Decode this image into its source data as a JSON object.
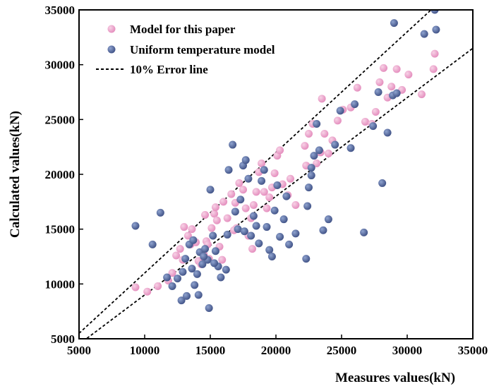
{
  "chart_data": {
    "type": "scatter",
    "title": "",
    "xlabel": "Measures values(kN)",
    "ylabel": "Calculated values(kN)",
    "xlim": [
      5000,
      35000
    ],
    "ylim": [
      5000,
      35000
    ],
    "x_ticks": [
      "5000",
      "10000",
      "15000",
      "20000",
      "25000",
      "30000",
      "35000"
    ],
    "y_ticks": [
      "5000",
      "10000",
      "15000",
      "20000",
      "25000",
      "30000",
      "35000"
    ],
    "grid": false,
    "legend_position": "top-left",
    "series": [
      {
        "name": "Model for this paper",
        "color": "#e8a0c8",
        "points": [
          [
            9300,
            9700
          ],
          [
            10200,
            9300
          ],
          [
            11000,
            9800
          ],
          [
            11800,
            10300
          ],
          [
            12100,
            11000
          ],
          [
            12400,
            12600
          ],
          [
            12700,
            13200
          ],
          [
            13000,
            15200
          ],
          [
            13300,
            14400
          ],
          [
            13600,
            15000
          ],
          [
            13900,
            13800
          ],
          [
            14100,
            12100
          ],
          [
            14300,
            11800
          ],
          [
            14500,
            12700
          ],
          [
            14700,
            13900
          ],
          [
            14900,
            12300
          ],
          [
            15100,
            15100
          ],
          [
            15300,
            16400
          ],
          [
            15500,
            15800
          ],
          [
            15700,
            13400
          ],
          [
            15900,
            12200
          ],
          [
            14800,
            13600
          ],
          [
            13500,
            13600
          ],
          [
            12900,
            12200
          ],
          [
            14600,
            16300
          ],
          [
            15400,
            17000
          ],
          [
            16000,
            17500
          ],
          [
            16300,
            16000
          ],
          [
            16600,
            18200
          ],
          [
            16900,
            17400
          ],
          [
            17200,
            19200
          ],
          [
            17500,
            18600
          ],
          [
            17700,
            16900
          ],
          [
            17900,
            14400
          ],
          [
            18100,
            16000
          ],
          [
            18300,
            17200
          ],
          [
            18500,
            18400
          ],
          [
            18700,
            20200
          ],
          [
            18900,
            21000
          ],
          [
            19100,
            18400
          ],
          [
            19300,
            16900
          ],
          [
            19500,
            17900
          ],
          [
            19700,
            18800
          ],
          [
            19900,
            20100
          ],
          [
            20100,
            21700
          ],
          [
            20300,
            22200
          ],
          [
            20500,
            19100
          ],
          [
            17000,
            15100
          ],
          [
            18200,
            13200
          ],
          [
            16800,
            14900
          ],
          [
            20900,
            18100
          ],
          [
            21500,
            17200
          ],
          [
            22200,
            22600
          ],
          [
            22500,
            23700
          ],
          [
            22800,
            24600
          ],
          [
            23100,
            21000
          ],
          [
            23400,
            22000
          ],
          [
            23700,
            23700
          ],
          [
            24000,
            21900
          ],
          [
            24300,
            23100
          ],
          [
            24700,
            24900
          ],
          [
            25100,
            25900
          ],
          [
            25700,
            26100
          ],
          [
            26200,
            27900
          ],
          [
            26800,
            24800
          ],
          [
            27300,
            24600
          ],
          [
            27600,
            25700
          ],
          [
            27900,
            28400
          ],
          [
            28200,
            29700
          ],
          [
            28500,
            27000
          ],
          [
            28800,
            28000
          ],
          [
            29200,
            29600
          ],
          [
            29600,
            27700
          ],
          [
            30100,
            29100
          ],
          [
            31100,
            27300
          ],
          [
            32000,
            29600
          ],
          [
            32100,
            31000
          ],
          [
            23500,
            26900
          ],
          [
            22300,
            20800
          ],
          [
            21100,
            19600
          ]
        ]
      },
      {
        "name": "Uniform temperature model",
        "color": "#5a6fa3",
        "points": [
          [
            9300,
            15300
          ],
          [
            10600,
            13600
          ],
          [
            11200,
            16500
          ],
          [
            11700,
            10600
          ],
          [
            12100,
            9800
          ],
          [
            12500,
            10500
          ],
          [
            12800,
            8500
          ],
          [
            13100,
            12300
          ],
          [
            13400,
            13600
          ],
          [
            13600,
            11400
          ],
          [
            13800,
            9900
          ],
          [
            14000,
            10900
          ],
          [
            14200,
            12900
          ],
          [
            14400,
            11800
          ],
          [
            14600,
            13200
          ],
          [
            14800,
            12200
          ],
          [
            15000,
            18600
          ],
          [
            15200,
            14400
          ],
          [
            15400,
            13000
          ],
          [
            15600,
            11600
          ],
          [
            15800,
            10600
          ],
          [
            14100,
            9000
          ],
          [
            13200,
            8900
          ],
          [
            14900,
            7800
          ],
          [
            12900,
            11100
          ],
          [
            13700,
            14000
          ],
          [
            14500,
            12500
          ],
          [
            15300,
            11900
          ],
          [
            16200,
            11300
          ],
          [
            16400,
            20400
          ],
          [
            16700,
            22700
          ],
          [
            16900,
            16600
          ],
          [
            17100,
            15000
          ],
          [
            17300,
            17700
          ],
          [
            17500,
            20800
          ],
          [
            17700,
            21300
          ],
          [
            17900,
            19600
          ],
          [
            18100,
            14400
          ],
          [
            18300,
            16200
          ],
          [
            18500,
            15300
          ],
          [
            18700,
            13700
          ],
          [
            18900,
            19400
          ],
          [
            19100,
            20400
          ],
          [
            19300,
            15200
          ],
          [
            19500,
            13100
          ],
          [
            19700,
            12500
          ],
          [
            19900,
            16700
          ],
          [
            20100,
            19000
          ],
          [
            20300,
            14300
          ],
          [
            20600,
            15900
          ],
          [
            21000,
            13600
          ],
          [
            21500,
            14600
          ],
          [
            22300,
            12300
          ],
          [
            22400,
            17100
          ],
          [
            22500,
            18800
          ],
          [
            22700,
            20600
          ],
          [
            22900,
            21700
          ],
          [
            23100,
            24600
          ],
          [
            23300,
            22200
          ],
          [
            23600,
            14900
          ],
          [
            24000,
            15900
          ],
          [
            24500,
            22700
          ],
          [
            24900,
            25800
          ],
          [
            25700,
            22400
          ],
          [
            26000,
            26400
          ],
          [
            26700,
            14700
          ],
          [
            27400,
            24400
          ],
          [
            27800,
            27500
          ],
          [
            28100,
            19200
          ],
          [
            28500,
            23800
          ],
          [
            28900,
            27200
          ],
          [
            29200,
            27400
          ],
          [
            29000,
            33800
          ],
          [
            31300,
            32800
          ],
          [
            32100,
            35000
          ],
          [
            32200,
            33200
          ],
          [
            22700,
            19900
          ],
          [
            20800,
            18000
          ],
          [
            16300,
            14500
          ],
          [
            17600,
            14800
          ]
        ]
      }
    ],
    "error_lines": {
      "name": "10% Error line",
      "style": "dashed",
      "upper_factor": 1.1,
      "lower_factor": 0.9
    }
  }
}
